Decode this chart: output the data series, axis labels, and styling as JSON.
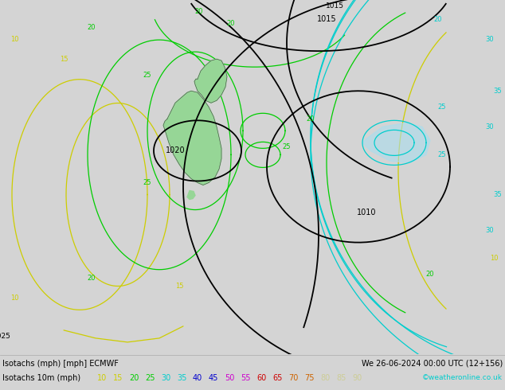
{
  "title_left": "Isotachs (mph) [mph] ECMWF",
  "title_right": "We 26-06-2024 00:00 UTC (12+156)",
  "legend_label": "Isotachs 10m (mph)",
  "legend_values": [
    10,
    15,
    20,
    25,
    30,
    35,
    40,
    45,
    50,
    55,
    60,
    65,
    70,
    75,
    80,
    85,
    90
  ],
  "watermark": "©weatheronline.co.uk",
  "bg_color": "#d4d4d4",
  "map_bg": "#d4d4d4",
  "bottom_bar_color": "#e8e8e8",
  "proper_colors": {
    "10": "#cdcd00",
    "15": "#cdcd00",
    "20": "#00cd00",
    "25": "#00cd00",
    "30": "#00cdcd",
    "35": "#00cdcd",
    "40": "#0000cd",
    "45": "#0000cd",
    "50": "#cd00cd",
    "55": "#cd00cd",
    "60": "#cd0000",
    "65": "#cd0000",
    "70": "#cd6400",
    "75": "#cd6400",
    "80": "#cdcd96",
    "85": "#cdcd96",
    "90": "#cdcd96"
  }
}
